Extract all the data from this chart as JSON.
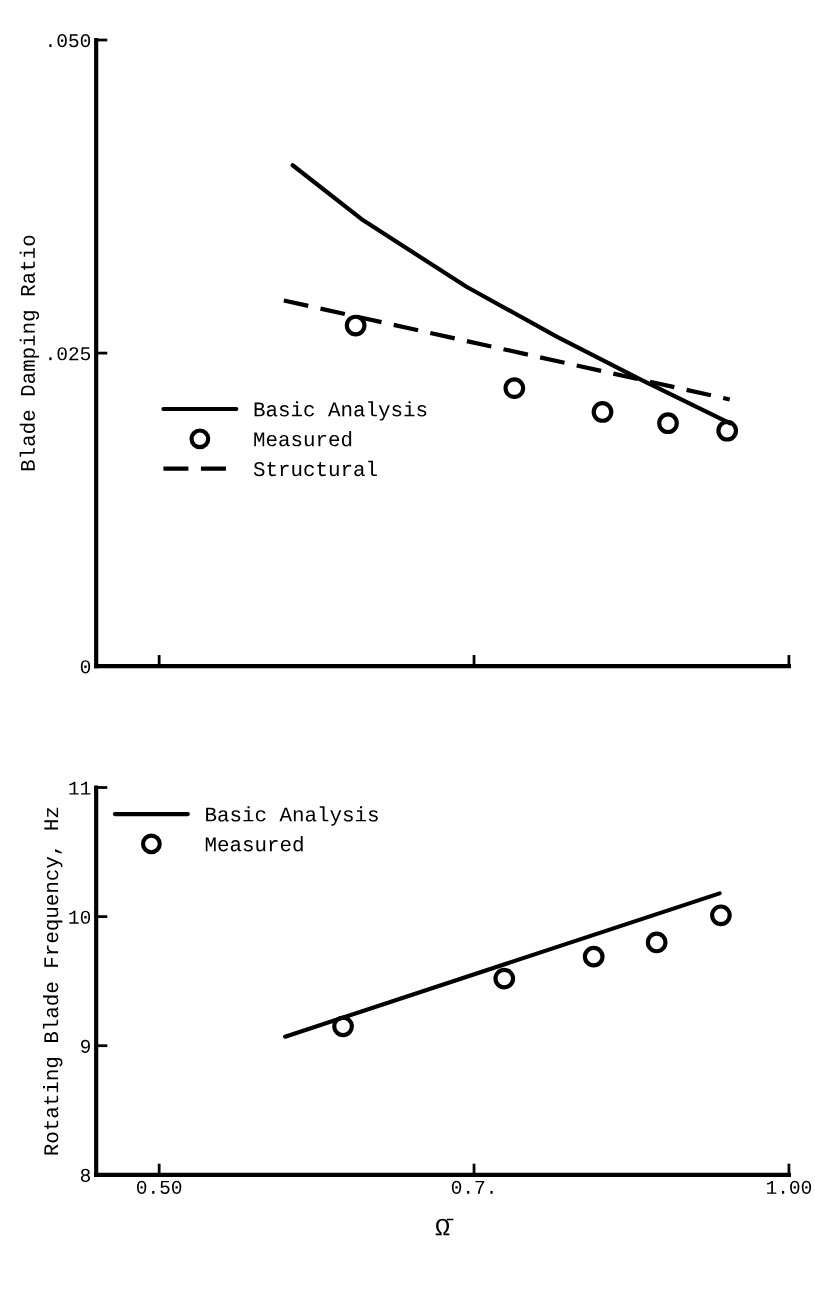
{
  "chart_data": [
    {
      "type": "line",
      "ylabel": "Blade Damping Ratio",
      "xlim": [
        0.45,
        1.0
      ],
      "xticks": [
        {
          "value": 0.5,
          "label": null
        },
        {
          "value": 0.75,
          "label": null
        },
        {
          "value": 1.0,
          "label": null
        }
      ],
      "ylim": [
        0,
        0.05
      ],
      "yticks": [
        {
          "value": 0,
          "label": "0"
        },
        {
          "value": 0.025,
          "label": ".025"
        },
        {
          "value": 0.05,
          "label": ".050"
        }
      ],
      "tick_labels": "y",
      "grid": false,
      "legend": "center left",
      "series": [
        {
          "name": "Basic Analysis",
          "line_style": "solid",
          "color": "#000000",
          "x": [
            0.606,
            0.662,
            0.744,
            0.816,
            0.882,
            0.953
          ],
          "values": [
            0.04,
            0.0356,
            0.0303,
            0.0263,
            0.0229,
            0.0194
          ]
        },
        {
          "name": "Measured",
          "type": "scatter",
          "marker": "circle",
          "color": "#000000",
          "x": [
            0.656,
            0.782,
            0.852,
            0.904,
            0.951
          ],
          "values": [
            0.0272,
            0.0222,
            0.0203,
            0.0194,
            0.0188
          ]
        },
        {
          "name": "Structural",
          "line_style": "dashed",
          "color": "#000000",
          "x": [
            0.599,
            0.953
          ],
          "values": [
            0.0292,
            0.0213
          ]
        }
      ]
    },
    {
      "type": "line",
      "ylabel": "Rotating Blade Frequency, Hz",
      "xlabel": "Ω̄",
      "xlim": [
        0.45,
        1.0
      ],
      "xticks": [
        {
          "value": 0.5,
          "label": "0.50"
        },
        {
          "value": 0.75,
          "label": "0.7."
        },
        {
          "value": 1.0,
          "label": "1.00"
        }
      ],
      "ylim": [
        8,
        11
      ],
      "yticks": [
        8,
        9,
        10,
        11
      ],
      "grid": false,
      "legend": "upper left",
      "series": [
        {
          "name": "Basic Analysis",
          "line_style": "solid",
          "color": "#000000",
          "x": [
            0.6,
            0.945
          ],
          "values": [
            9.07,
            10.18
          ]
        },
        {
          "name": "Measured",
          "type": "scatter",
          "marker": "circle",
          "color": "#000000",
          "x": [
            0.646,
            0.774,
            0.845,
            0.895,
            0.946
          ],
          "values": [
            9.15,
            9.52,
            9.69,
            9.8,
            10.01
          ]
        }
      ]
    }
  ]
}
